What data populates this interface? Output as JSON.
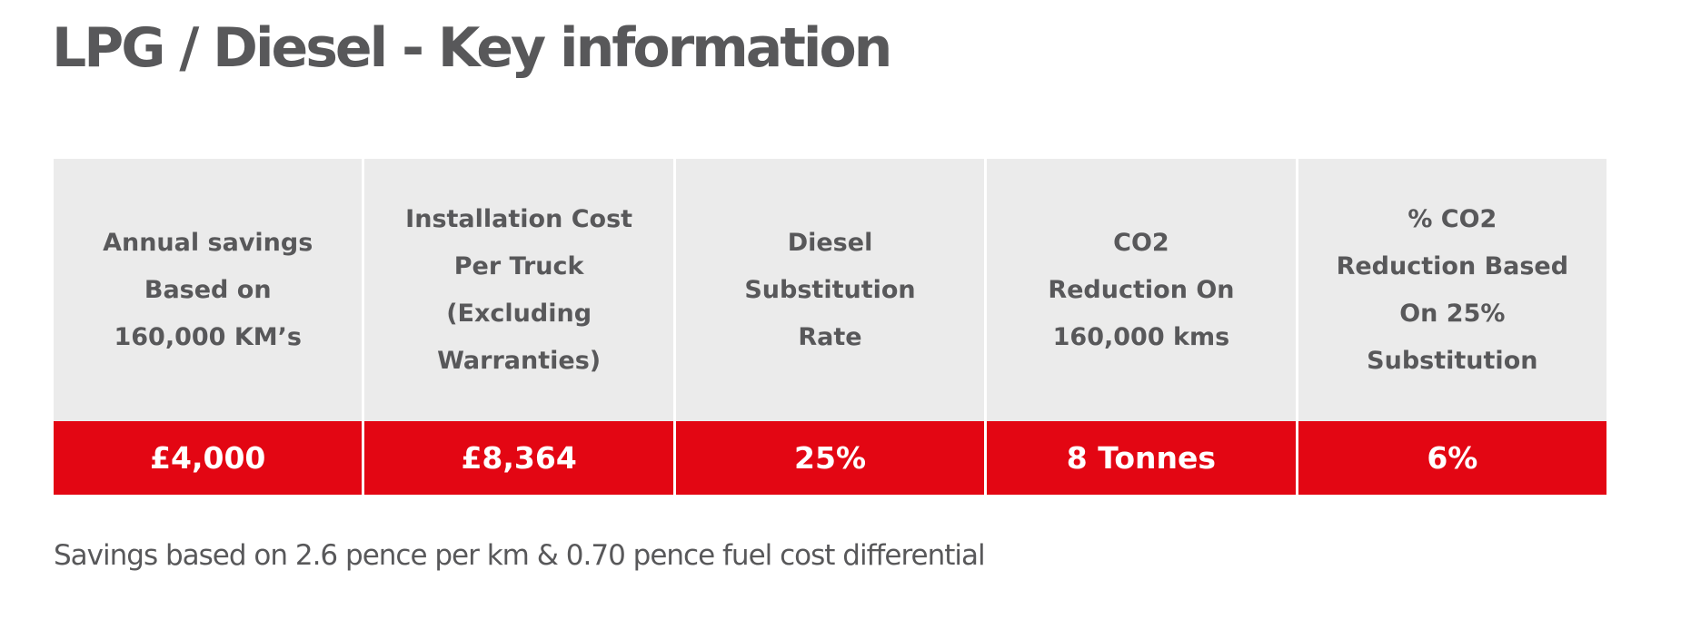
{
  "title": "LPG / Diesel - Key information",
  "table": {
    "headers": [
      [
        "Annual savings",
        "Based on",
        "160,000 KM’s"
      ],
      [
        "Installation Cost",
        "Per Truck",
        "(Excluding",
        "Warranties)"
      ],
      [
        "Diesel",
        "Substitution",
        "Rate"
      ],
      [
        "CO2",
        "Reduction On",
        "160,000 kms"
      ],
      [
        "% CO2",
        "Reduction Based",
        "On 25%",
        "Substitution"
      ]
    ],
    "values": [
      "£4,000",
      "£8,364",
      "25%",
      "8 Tonnes",
      "6%"
    ]
  },
  "footnote": "Savings based on 2.6 pence per km & 0.70 pence fuel cost differential"
}
